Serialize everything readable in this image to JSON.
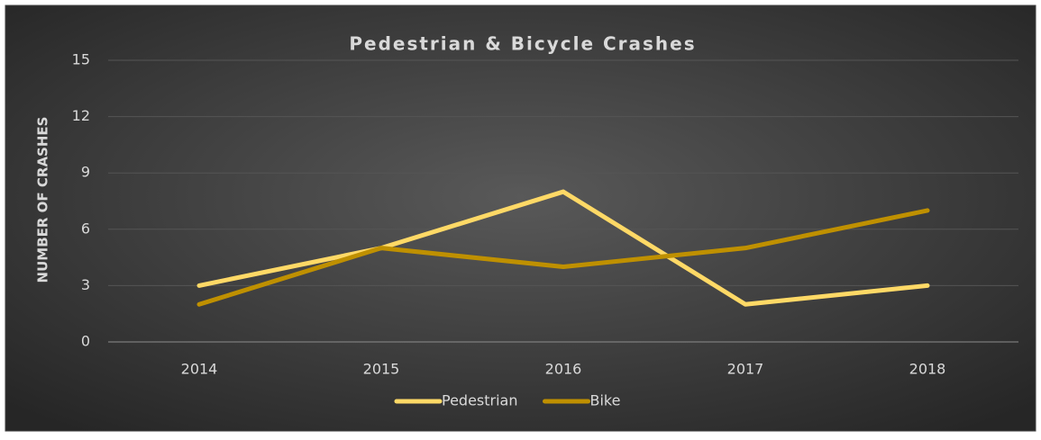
{
  "chart_data": {
    "type": "line",
    "title": "Pedestrian & Bicycle Crashes",
    "ylabel": "NUMBER OF CRASHES",
    "categories": [
      "2014",
      "2015",
      "2016",
      "2017",
      "2018"
    ],
    "series": [
      {
        "name": "Pedestrian",
        "color": "#ffd966",
        "values": [
          3,
          5,
          8,
          2,
          3
        ]
      },
      {
        "name": "Bike",
        "color": "#bf9000",
        "values": [
          2,
          5,
          4,
          5,
          7
        ]
      }
    ],
    "ylim": [
      0,
      15
    ],
    "yticks": [
      0,
      3,
      6,
      9,
      12,
      15
    ],
    "grid": true,
    "legend": "bottom"
  }
}
